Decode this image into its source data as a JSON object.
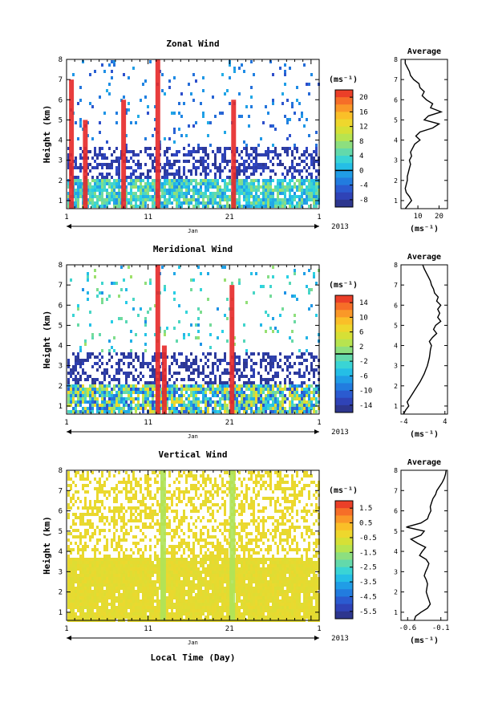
{
  "chart_data": [
    {
      "type": "heatmap",
      "title": "Zonal Wind",
      "ylabel": "Height (km)",
      "ylim": [
        0.6,
        8
      ],
      "yticks": [
        1,
        2,
        3,
        4,
        5,
        6,
        7,
        8
      ],
      "xlim": [
        1,
        32
      ],
      "xticks": [
        "1",
        "11",
        "21",
        "1"
      ],
      "month_label": "Jan",
      "year_label": "2013",
      "colorbar": {
        "unit": "(ms⁻¹)",
        "min": -10,
        "max": 22,
        "tick_labels": [
          "20",
          "16",
          "12",
          "8",
          "4",
          "0",
          "-4",
          "-8"
        ],
        "tick_values": [
          20,
          16,
          12,
          8,
          4,
          0,
          -4,
          -8
        ],
        "zero_line": 0
      },
      "average_profile": {
        "title": "Average",
        "xlabel": "(ms⁻¹)",
        "xlim": [
          2,
          24
        ],
        "xtick_labels": [
          "10",
          "20"
        ],
        "xtick_values": [
          10,
          20
        ],
        "heights": [
          0.6,
          0.8,
          1.0,
          1.2,
          1.4,
          1.6,
          1.8,
          2.0,
          2.2,
          2.4,
          2.6,
          2.8,
          3.0,
          3.2,
          3.4,
          3.6,
          3.8,
          4.0,
          4.2,
          4.4,
          4.6,
          4.8,
          5.0,
          5.2,
          5.4,
          5.6,
          5.8,
          6.0,
          6.2,
          6.4,
          6.6,
          6.8,
          7.0,
          7.2,
          7.4,
          7.6,
          7.8,
          8.0
        ],
        "values": [
          4.0,
          5.5,
          7.0,
          6.0,
          4.5,
          4.0,
          4.5,
          5.0,
          5.0,
          5.5,
          6.0,
          6.5,
          6.0,
          7.0,
          6.5,
          7.5,
          8.5,
          11.0,
          9.0,
          11.0,
          17.0,
          20.0,
          13.0,
          15.0,
          21.0,
          16.0,
          17.0,
          14.0,
          12.0,
          13.0,
          11.0,
          10.5,
          8.0,
          6.5,
          6.0,
          5.0,
          4.0,
          4.0
        ]
      }
    },
    {
      "type": "heatmap",
      "title": "Meridional Wind",
      "ylabel": "Height (km)",
      "ylim": [
        0.6,
        8
      ],
      "yticks": [
        1,
        2,
        3,
        4,
        5,
        6,
        7,
        8
      ],
      "xlim": [
        1,
        32
      ],
      "xticks": [
        "1",
        "11",
        "21",
        "1"
      ],
      "month_label": "Jan",
      "year_label": "2013",
      "colorbar": {
        "unit": "(ms⁻¹)",
        "min": -16,
        "max": 16,
        "tick_labels": [
          "14",
          "10",
          "6",
          "2",
          "-2",
          "-6",
          "-10",
          "-14"
        ],
        "tick_values": [
          14,
          10,
          6,
          2,
          -2,
          -6,
          -10,
          -14
        ],
        "zero_line": 0
      },
      "average_profile": {
        "title": "Average",
        "xlabel": "(ms⁻¹)",
        "xlim": [
          -4.5,
          4.5
        ],
        "xtick_labels": [
          "-4",
          "4"
        ],
        "xtick_values": [
          -4,
          4
        ],
        "heights": [
          0.6,
          0.8,
          1.0,
          1.2,
          1.4,
          1.6,
          1.8,
          2.0,
          2.2,
          2.4,
          2.6,
          2.8,
          3.0,
          3.2,
          3.4,
          3.6,
          3.8,
          4.0,
          4.2,
          4.4,
          4.6,
          4.8,
          5.0,
          5.2,
          5.4,
          5.6,
          5.8,
          6.0,
          6.2,
          6.4,
          6.6,
          6.8,
          7.0,
          7.2,
          7.4,
          7.6,
          7.8,
          8.0
        ],
        "values": [
          -4.0,
          -3.6,
          -3.0,
          -3.3,
          -2.8,
          -2.3,
          -1.8,
          -1.3,
          -0.8,
          -0.4,
          0.0,
          0.3,
          0.6,
          0.8,
          1.0,
          1.1,
          1.2,
          1.4,
          1.0,
          1.6,
          2.4,
          1.8,
          2.2,
          3.2,
          2.6,
          3.0,
          2.6,
          3.2,
          2.4,
          2.7,
          2.0,
          1.8,
          1.4,
          1.2,
          0.8,
          0.4,
          0.0,
          -0.3
        ]
      }
    },
    {
      "type": "heatmap",
      "title": "Vertical Wind",
      "ylabel": "Height (km)",
      "xlabel": "Local Time (Day)",
      "ylim": [
        0.6,
        8
      ],
      "yticks": [
        1,
        2,
        3,
        4,
        5,
        6,
        7,
        8
      ],
      "xlim": [
        1,
        32
      ],
      "xticks": [
        "1",
        "11",
        "21",
        "1"
      ],
      "month_label": "Jan",
      "year_label": "2013",
      "colorbar": {
        "unit": "(ms⁻¹)",
        "min": -6.0,
        "max": 2.0,
        "tick_labels": [
          "1.5",
          "0.5",
          "-0.5",
          "-1.5",
          "-2.5",
          "-3.5",
          "-4.5",
          "-5.5"
        ],
        "tick_values": [
          1.5,
          0.5,
          -0.5,
          -1.5,
          -2.5,
          -3.5,
          -4.5,
          -5.5
        ]
      },
      "average_profile": {
        "title": "Average",
        "xlabel": "(ms⁻¹)",
        "xlim": [
          -0.7,
          0.0
        ],
        "xtick_labels": [
          "-0.6",
          "-0.1"
        ],
        "xtick_values": [
          -0.6,
          -0.1
        ],
        "heights": [
          0.6,
          0.8,
          1.0,
          1.2,
          1.4,
          1.6,
          1.8,
          2.0,
          2.2,
          2.4,
          2.6,
          2.8,
          3.0,
          3.2,
          3.4,
          3.6,
          3.8,
          4.0,
          4.2,
          4.4,
          4.6,
          4.8,
          5.0,
          5.2,
          5.4,
          5.6,
          5.8,
          6.0,
          6.2,
          6.4,
          6.6,
          6.8,
          7.0,
          7.2,
          7.4,
          7.6,
          7.8,
          8.0
        ],
        "values": [
          -0.5,
          -0.48,
          -0.4,
          -0.3,
          -0.26,
          -0.28,
          -0.3,
          -0.32,
          -0.31,
          -0.3,
          -0.32,
          -0.35,
          -0.33,
          -0.3,
          -0.28,
          -0.32,
          -0.42,
          -0.38,
          -0.33,
          -0.45,
          -0.55,
          -0.4,
          -0.35,
          -0.62,
          -0.4,
          -0.3,
          -0.28,
          -0.25,
          -0.26,
          -0.24,
          -0.22,
          -0.18,
          -0.16,
          -0.12,
          -0.08,
          -0.05,
          -0.03,
          -0.02
        ]
      }
    }
  ]
}
